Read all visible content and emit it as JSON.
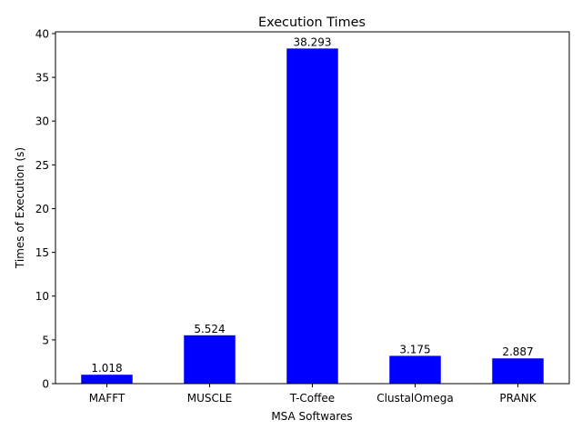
{
  "chart_data": {
    "type": "bar",
    "title": "Execution Times",
    "xlabel": "MSA Softwares",
    "ylabel": "Times of Execution (s)",
    "categories": [
      "MAFFT",
      "MUSCLE",
      "T-Coffee",
      "ClustalOmega",
      "PRANK"
    ],
    "values": [
      1.018,
      5.524,
      38.293,
      3.175,
      2.887
    ],
    "value_labels": [
      "1.018",
      "5.524",
      "38.293",
      "3.175",
      "2.887"
    ],
    "ylim": [
      0,
      40.2
    ],
    "yticks": [
      0,
      5,
      10,
      15,
      20,
      25,
      30,
      35,
      40
    ],
    "bar_color": "#0000ff",
    "grid": false,
    "legend": false
  }
}
